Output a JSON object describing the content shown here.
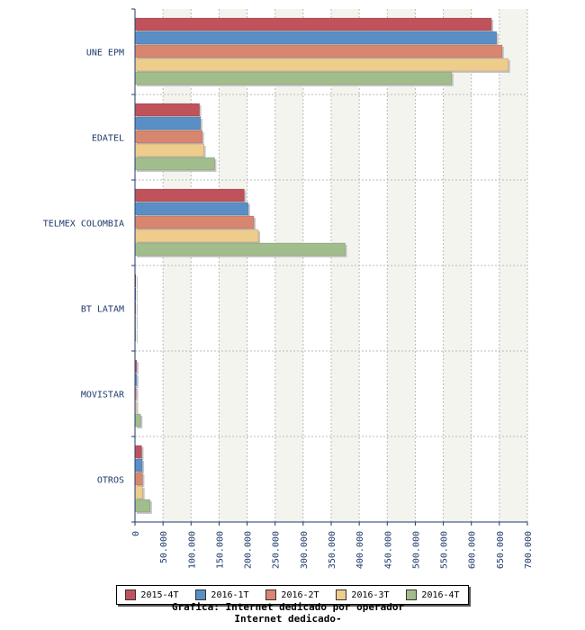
{
  "chart_data": {
    "type": "bar",
    "orientation": "horizontal",
    "categories": [
      "UNE EPM",
      "EDATEL",
      "TELMEX COLOMBIA",
      "BT LATAM",
      "MOVISTAR",
      "OTROS"
    ],
    "series": [
      {
        "name": "2015-4T",
        "color": "#c0525c",
        "values": [
          636000,
          115000,
          195000,
          500,
          3000,
          12000
        ]
      },
      {
        "name": "2016-1T",
        "color": "#5a8fc6",
        "values": [
          645000,
          117000,
          202000,
          500,
          3000,
          13000
        ]
      },
      {
        "name": "2016-2T",
        "color": "#d88670",
        "values": [
          655000,
          120000,
          212000,
          500,
          2500,
          13500
        ]
      },
      {
        "name": "2016-3T",
        "color": "#eecc8c",
        "values": [
          666000,
          123000,
          220000,
          500,
          2500,
          14000
        ]
      },
      {
        "name": "2016-4T",
        "color": "#a2bd8c",
        "values": [
          565000,
          142000,
          375000,
          500,
          10000,
          27000
        ]
      }
    ],
    "xlim": [
      0,
      700000
    ],
    "x_ticks": [
      0,
      50000,
      100000,
      150000,
      200000,
      250000,
      300000,
      350000,
      400000,
      450000,
      500000,
      550000,
      600000,
      650000,
      700000
    ],
    "x_tick_labels": [
      "0",
      "50.000",
      "100.000",
      "150.000",
      "200.000",
      "250.000",
      "300.000",
      "350.000",
      "400.000",
      "450.000",
      "500.000",
      "550.000",
      "600.000",
      "650.000",
      "700.000"
    ],
    "grid": true,
    "legend_position": "bottom"
  },
  "caption": {
    "line1": "Grafica: Internet dedicado por operador",
    "line2": "Internet dedicado-"
  }
}
